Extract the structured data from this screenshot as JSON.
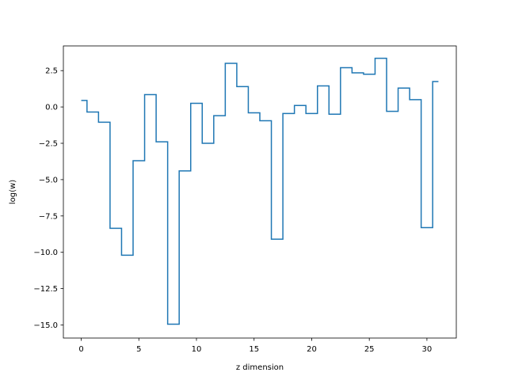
{
  "chart_data": {
    "type": "line",
    "drawstyle": "steps-mid",
    "xlabel": "z dimension",
    "ylabel": "log(w)",
    "xlim": [
      -1.55,
      32.55
    ],
    "ylim": [
      -15.9,
      4.2
    ],
    "xticks": [
      0,
      5,
      10,
      15,
      20,
      25,
      30
    ],
    "xtick_labels": [
      "0",
      "5",
      "10",
      "15",
      "20",
      "25",
      "30"
    ],
    "yticks": [
      -15.0,
      -12.5,
      -10.0,
      -7.5,
      -5.0,
      -2.5,
      0.0,
      2.5
    ],
    "ytick_labels": [
      "−15.0",
      "−12.5",
      "−10.0",
      "−7.5",
      "−5.0",
      "−2.5",
      "0.0",
      "2.5"
    ],
    "grid": false,
    "series": [
      {
        "color": "#1f77b4",
        "x": [
          0,
          1,
          2,
          3,
          4,
          5,
          6,
          7,
          8,
          9,
          10,
          11,
          12,
          13,
          14,
          15,
          16,
          17,
          18,
          19,
          20,
          21,
          22,
          23,
          24,
          25,
          26,
          27,
          28,
          29,
          30,
          31
        ],
        "values": [
          0.45,
          -0.35,
          -1.05,
          -8.35,
          -10.2,
          -3.7,
          0.85,
          -2.4,
          -14.95,
          -4.4,
          0.25,
          -2.5,
          -0.6,
          3.0,
          1.4,
          -0.4,
          -0.95,
          -9.1,
          -0.45,
          0.1,
          -0.45,
          1.45,
          -0.5,
          2.7,
          2.35,
          2.25,
          3.35,
          -0.3,
          1.3,
          0.5,
          -8.3,
          1.75
        ]
      }
    ]
  }
}
